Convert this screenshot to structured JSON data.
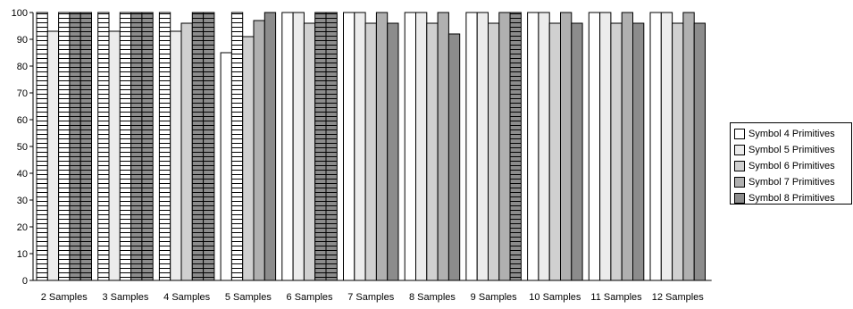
{
  "chart_data": {
    "type": "bar",
    "categories": [
      "2 Samples",
      "3 Samples",
      "4 Samples",
      "5 Samples",
      "6 Samples",
      "7 Samples",
      "8 Samples",
      "9 Samples",
      "10 Samples",
      "11 Samples",
      "12 Samples"
    ],
    "series": [
      {
        "name": "Symbol 4 Primitives",
        "color": "#ffffff",
        "values": [
          100,
          100,
          100,
          85,
          100,
          100,
          100,
          100,
          100,
          100,
          100
        ]
      },
      {
        "name": "Symbol 5 Primitives",
        "color": "#ececec",
        "values": [
          93,
          93,
          93,
          100,
          100,
          100,
          100,
          100,
          100,
          100,
          100
        ]
      },
      {
        "name": "Symbol 6 Primitives",
        "color": "#d0d0d0",
        "values": [
          100,
          100,
          96,
          91,
          96,
          96,
          96,
          96,
          96,
          96,
          96
        ]
      },
      {
        "name": "Symbol 7 Primitives",
        "color": "#b0b0b0",
        "values": [
          100,
          100,
          100,
          97,
          100,
          100,
          100,
          100,
          100,
          100,
          100
        ]
      },
      {
        "name": "Symbol 8 Primitives",
        "color": "#8c8c8c",
        "values": [
          100,
          100,
          100,
          100,
          100,
          96,
          92,
          100,
          96,
          96,
          96
        ]
      }
    ],
    "hatched": [
      [
        true,
        false,
        false,
        false,
        false
      ],
      [
        true,
        false,
        false,
        false,
        false
      ],
      [
        true,
        false,
        false,
        false,
        false
      ],
      [
        false,
        true,
        false,
        false,
        false
      ],
      [
        false,
        false,
        false,
        false,
        false
      ],
      [
        false,
        false,
        false,
        false,
        false
      ],
      [
        false,
        false,
        false,
        false,
        false
      ],
      [
        false,
        false,
        false,
        false,
        false
      ],
      [
        false,
        false,
        false,
        false,
        false
      ],
      [
        false,
        false,
        false,
        false,
        false
      ],
      [
        false,
        false,
        false,
        false,
        false
      ]
    ],
    "hatched_full": [
      [
        false,
        false,
        true,
        true,
        true
      ],
      [
        false,
        false,
        true,
        true,
        true
      ],
      [
        false,
        false,
        false,
        true,
        true
      ],
      [
        false,
        false,
        false,
        false,
        false
      ],
      [
        false,
        false,
        false,
        true,
        true
      ],
      [
        false,
        false,
        false,
        false,
        false
      ],
      [
        false,
        false,
        false,
        false,
        false
      ],
      [
        false,
        false,
        false,
        false,
        true
      ],
      [
        false,
        false,
        false,
        false,
        false
      ],
      [
        false,
        false,
        false,
        false,
        false
      ],
      [
        false,
        false,
        false,
        false,
        false
      ]
    ],
    "yticks": [
      0,
      10,
      20,
      30,
      40,
      50,
      60,
      70,
      80,
      90,
      100
    ],
    "ylim": [
      0,
      100
    ],
    "grid": false,
    "legend_position": "right",
    "title": "",
    "xlabel": "",
    "ylabel": ""
  }
}
